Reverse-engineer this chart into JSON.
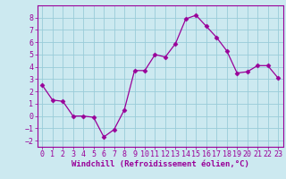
{
  "x": [
    0,
    1,
    2,
    3,
    4,
    5,
    6,
    7,
    8,
    9,
    10,
    11,
    12,
    13,
    14,
    15,
    16,
    17,
    18,
    19,
    20,
    21,
    22,
    23
  ],
  "y": [
    2.5,
    1.3,
    1.2,
    0.0,
    0.0,
    -0.1,
    -1.7,
    -1.1,
    0.5,
    3.7,
    3.7,
    5.0,
    4.8,
    5.9,
    7.9,
    8.2,
    7.3,
    6.4,
    5.3,
    3.5,
    3.6,
    4.1,
    4.1,
    3.1
  ],
  "line_color": "#990099",
  "marker": "D",
  "marker_size": 2.5,
  "bg_color": "#cce9f0",
  "grid_color": "#99ccd9",
  "xlabel": "Windchill (Refroidissement éolien,°C)",
  "xlabel_fontsize": 6.5,
  "tick_fontsize": 6,
  "ylim": [
    -2.5,
    9.0
  ],
  "xlim": [
    -0.5,
    23.5
  ],
  "yticks": [
    -2,
    -1,
    0,
    1,
    2,
    3,
    4,
    5,
    6,
    7,
    8
  ],
  "xticks": [
    0,
    1,
    2,
    3,
    4,
    5,
    6,
    7,
    8,
    9,
    10,
    11,
    12,
    13,
    14,
    15,
    16,
    17,
    18,
    19,
    20,
    21,
    22,
    23
  ]
}
